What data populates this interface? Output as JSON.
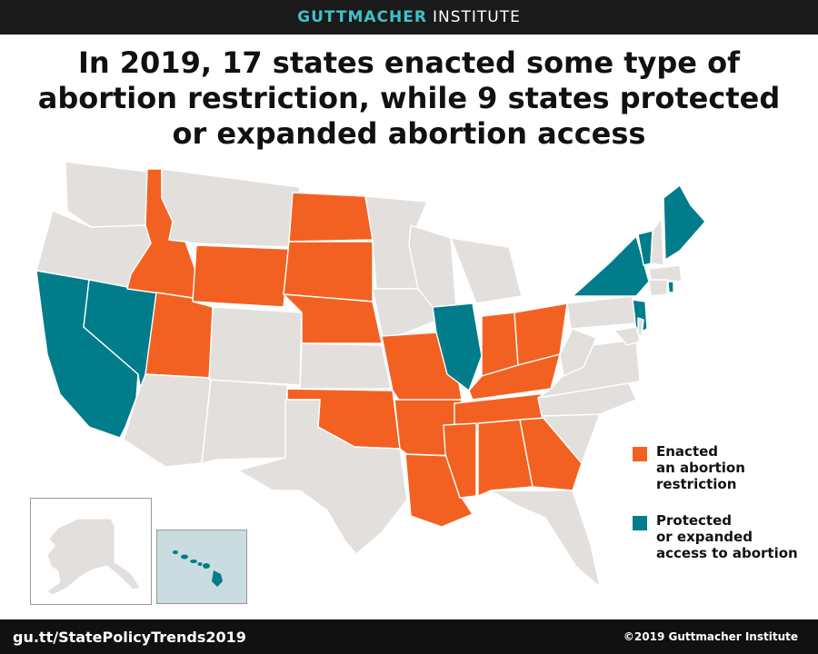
{
  "header": {
    "brand_primary": "GUTTMACHER",
    "brand_secondary": "INSTITUTE"
  },
  "title": "In 2019, 17 states enacted some type of abortion restriction, while 9 states protected or expanded abortion access",
  "colors": {
    "restriction": "#f26122",
    "protected": "#007c8a",
    "neutral": "#e3dfdd",
    "brand_accent": "#3fc1c9",
    "hawaii_bg": "#c9dce0"
  },
  "legend": {
    "restriction": "Enacted\nan abortion\nrestriction",
    "protected": "Protected\nor expanded\naccess to abortion"
  },
  "states": {
    "restriction": [
      "ID",
      "WY",
      "ND",
      "SD",
      "NE",
      "UT",
      "OK",
      "MO",
      "AR",
      "LA",
      "MS",
      "AL",
      "GA",
      "TN",
      "KY",
      "IN",
      "OH"
    ],
    "protected": [
      "CA",
      "NV",
      "IL",
      "NY",
      "NJ",
      "VT",
      "ME",
      "RI",
      "HI"
    ]
  },
  "footer": {
    "link": "gu.tt/StatePolicyTrends2019",
    "copyright": "©2019 Guttmacher Institute"
  }
}
